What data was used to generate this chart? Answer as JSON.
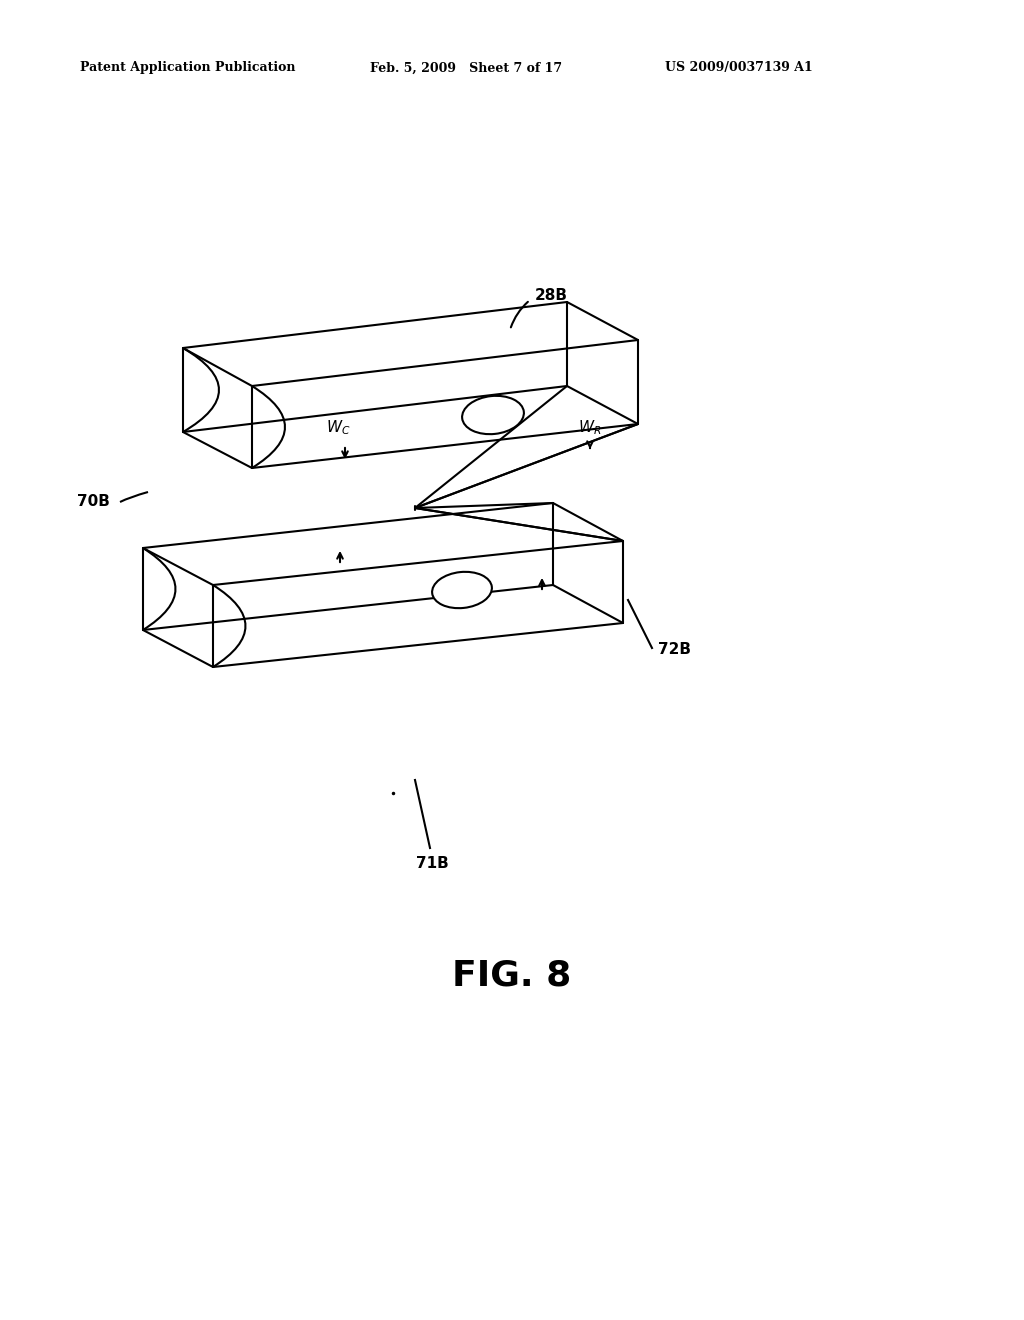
{
  "background_color": "#ffffff",
  "header_left": "Patent Application Publication",
  "header_mid": "Feb. 5, 2009   Sheet 7 of 17",
  "header_right": "US 2009/0037139 A1",
  "figure_label": "FIG. 8"
}
